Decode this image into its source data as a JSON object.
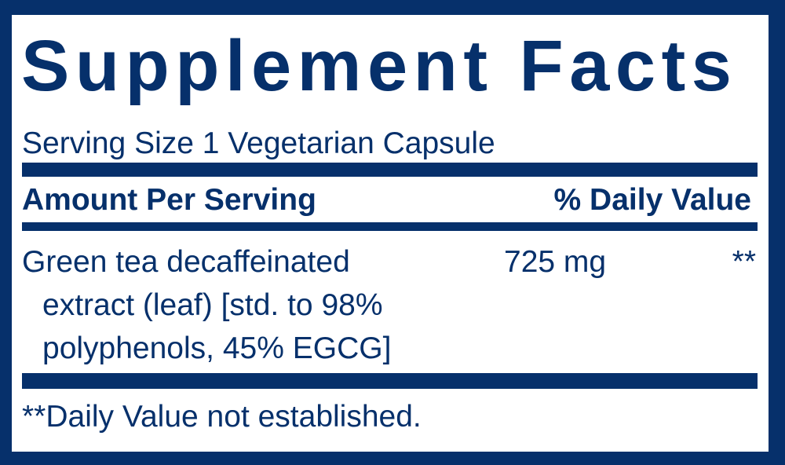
{
  "title": "Supplement Facts",
  "serving_size": "Serving Size 1 Vegetarian Capsule",
  "header": {
    "amount": "Amount Per Serving",
    "daily_value": "% Daily Value"
  },
  "ingredients": [
    {
      "name_lines": [
        "Green tea decaffeinated",
        "extract (leaf) [std. to 98%",
        "polyphenols, 45% EGCG]"
      ],
      "amount": "725 mg",
      "dv": "**"
    }
  ],
  "footnote": "**Daily Value not established.",
  "colors": {
    "brand": "#06306b",
    "background": "#ffffff"
  }
}
